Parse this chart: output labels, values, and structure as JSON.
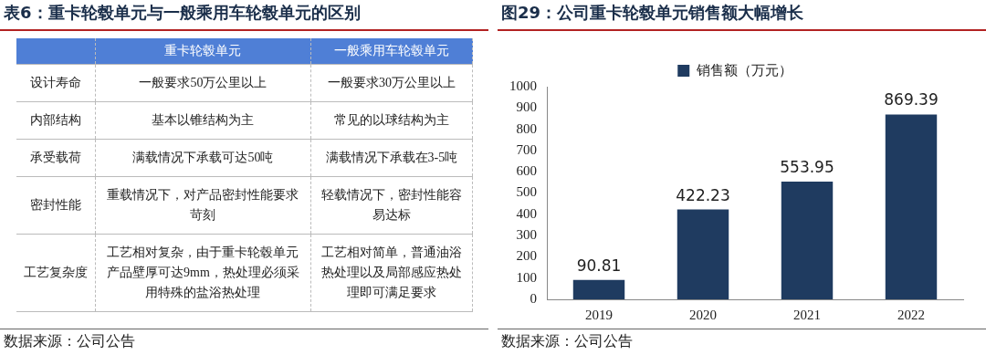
{
  "chart_data": [
    {
      "type": "other",
      "title": "表6：重卡轮毂单元与一般乘用车轮毂单元的区别",
      "categories": [
        "重卡轮毂单元",
        "一般乘用车轮毂单元"
      ],
      "y_categories": [
        "设计寿命",
        "内部结构",
        "承受载荷",
        "密封性能",
        "工艺复杂度"
      ],
      "cell_labels": [
        [
          "一般要求50万公里以上",
          "一般要求30万公里以上"
        ],
        [
          "基本以锥结构为主",
          "常见的以球结构为主"
        ],
        [
          "满载情况下承载可达50吨",
          "满载情况下承载在3-5吨"
        ],
        [
          "重载情况下，对产品密封性能要求苛刻",
          "轻载情况下，密封性能容易达标"
        ],
        [
          "工艺相对复杂，由于重卡轮毂单元产品壁厚可达9mm，热处理必须采用特殊的盐浴热处理",
          "工艺相对简单，普通油浴热处理以及局部感应热处理即可满足要求"
        ]
      ],
      "annotations": [
        "数据来源：公司公告"
      ]
    },
    {
      "type": "bar",
      "title": "图29：公司重卡轮毂单元销售额大幅增长",
      "categories": [
        "2019",
        "2020",
        "2021",
        "2022"
      ],
      "series": [
        {
          "name": "销售额（万元）",
          "color": "#1f3b60",
          "values": [
            90.81,
            422.23,
            553.95,
            869.39
          ]
        }
      ],
      "ylim": [
        0,
        1000
      ],
      "yticks": [
        0,
        100,
        200,
        300,
        400,
        500,
        600,
        700,
        800,
        900,
        1000
      ],
      "grid": false,
      "legend": "top",
      "data_labels": true,
      "annotations": [
        "数据来源：公司公告"
      ]
    }
  ]
}
